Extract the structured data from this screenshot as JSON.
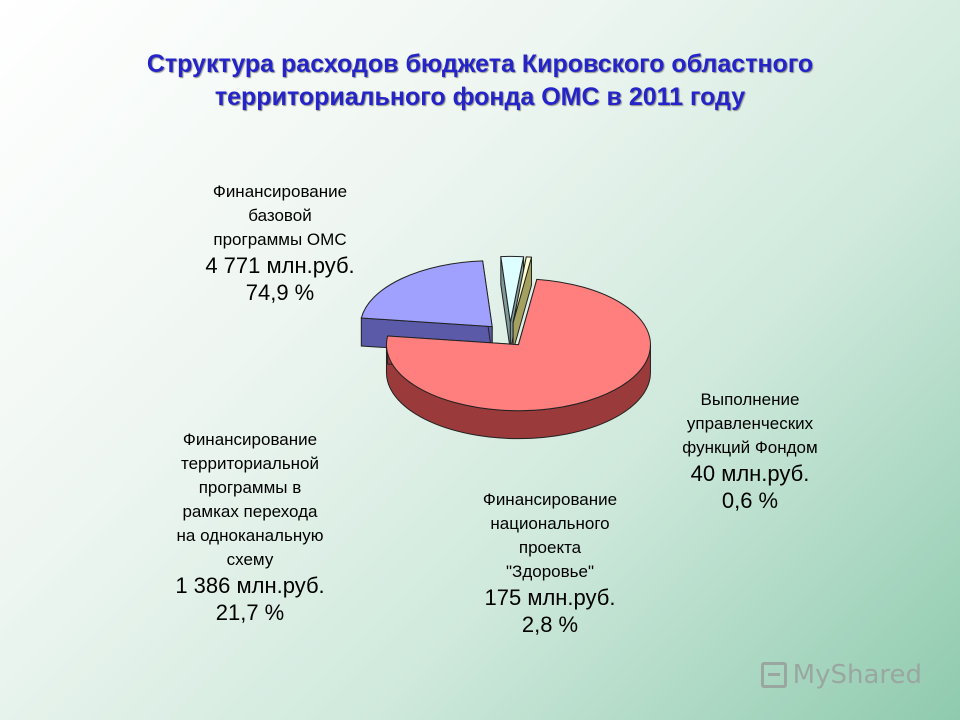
{
  "title": {
    "line1": "Структура расходов бюджета Кировского областного",
    "line2": "территориального фонда ОМС в 2011 году"
  },
  "chart_data": {
    "type": "pie",
    "style": "3d-exploded",
    "title": "Структура расходов бюджета Кировского областного территориального фонда ОМС в 2011 году",
    "unit": "млн.руб.",
    "slices": [
      {
        "label_lines": [
          "Финансирование",
          "базовой",
          "программы ОМС"
        ],
        "value": 4771,
        "value_text": "4 771 млн.руб.",
        "percent": 74.9,
        "percent_text": "74,9 %",
        "color": "#ff7f7f",
        "side_color": "#9a3a3a"
      },
      {
        "label_lines": [
          "Финансирование",
          "территориальной",
          "программы в",
          "рамках перехода",
          "на одноканальную",
          "схему"
        ],
        "value": 1386,
        "value_text": "1 386 млн.руб.",
        "percent": 21.7,
        "percent_text": "21,7 %",
        "color": "#a0a0ff",
        "side_color": "#5a5aa8"
      },
      {
        "label_lines": [
          "Финансирование",
          "национального",
          "проекта",
          "\"Здоровье\""
        ],
        "value": 175,
        "value_text": "175 млн.руб.",
        "percent": 2.8,
        "percent_text": "2,8 %",
        "color": "#ddffff",
        "side_color": "#7f9a9a"
      },
      {
        "label_lines": [
          "Выполнение",
          "управленческих",
          "функций Фондом"
        ],
        "value": 40,
        "value_text": "40 млн.руб.",
        "percent": 0.6,
        "percent_text": "0,6 %",
        "color": "#ffffcc",
        "side_color": "#a3a060"
      }
    ]
  },
  "watermark": {
    "text": "MyShared"
  }
}
